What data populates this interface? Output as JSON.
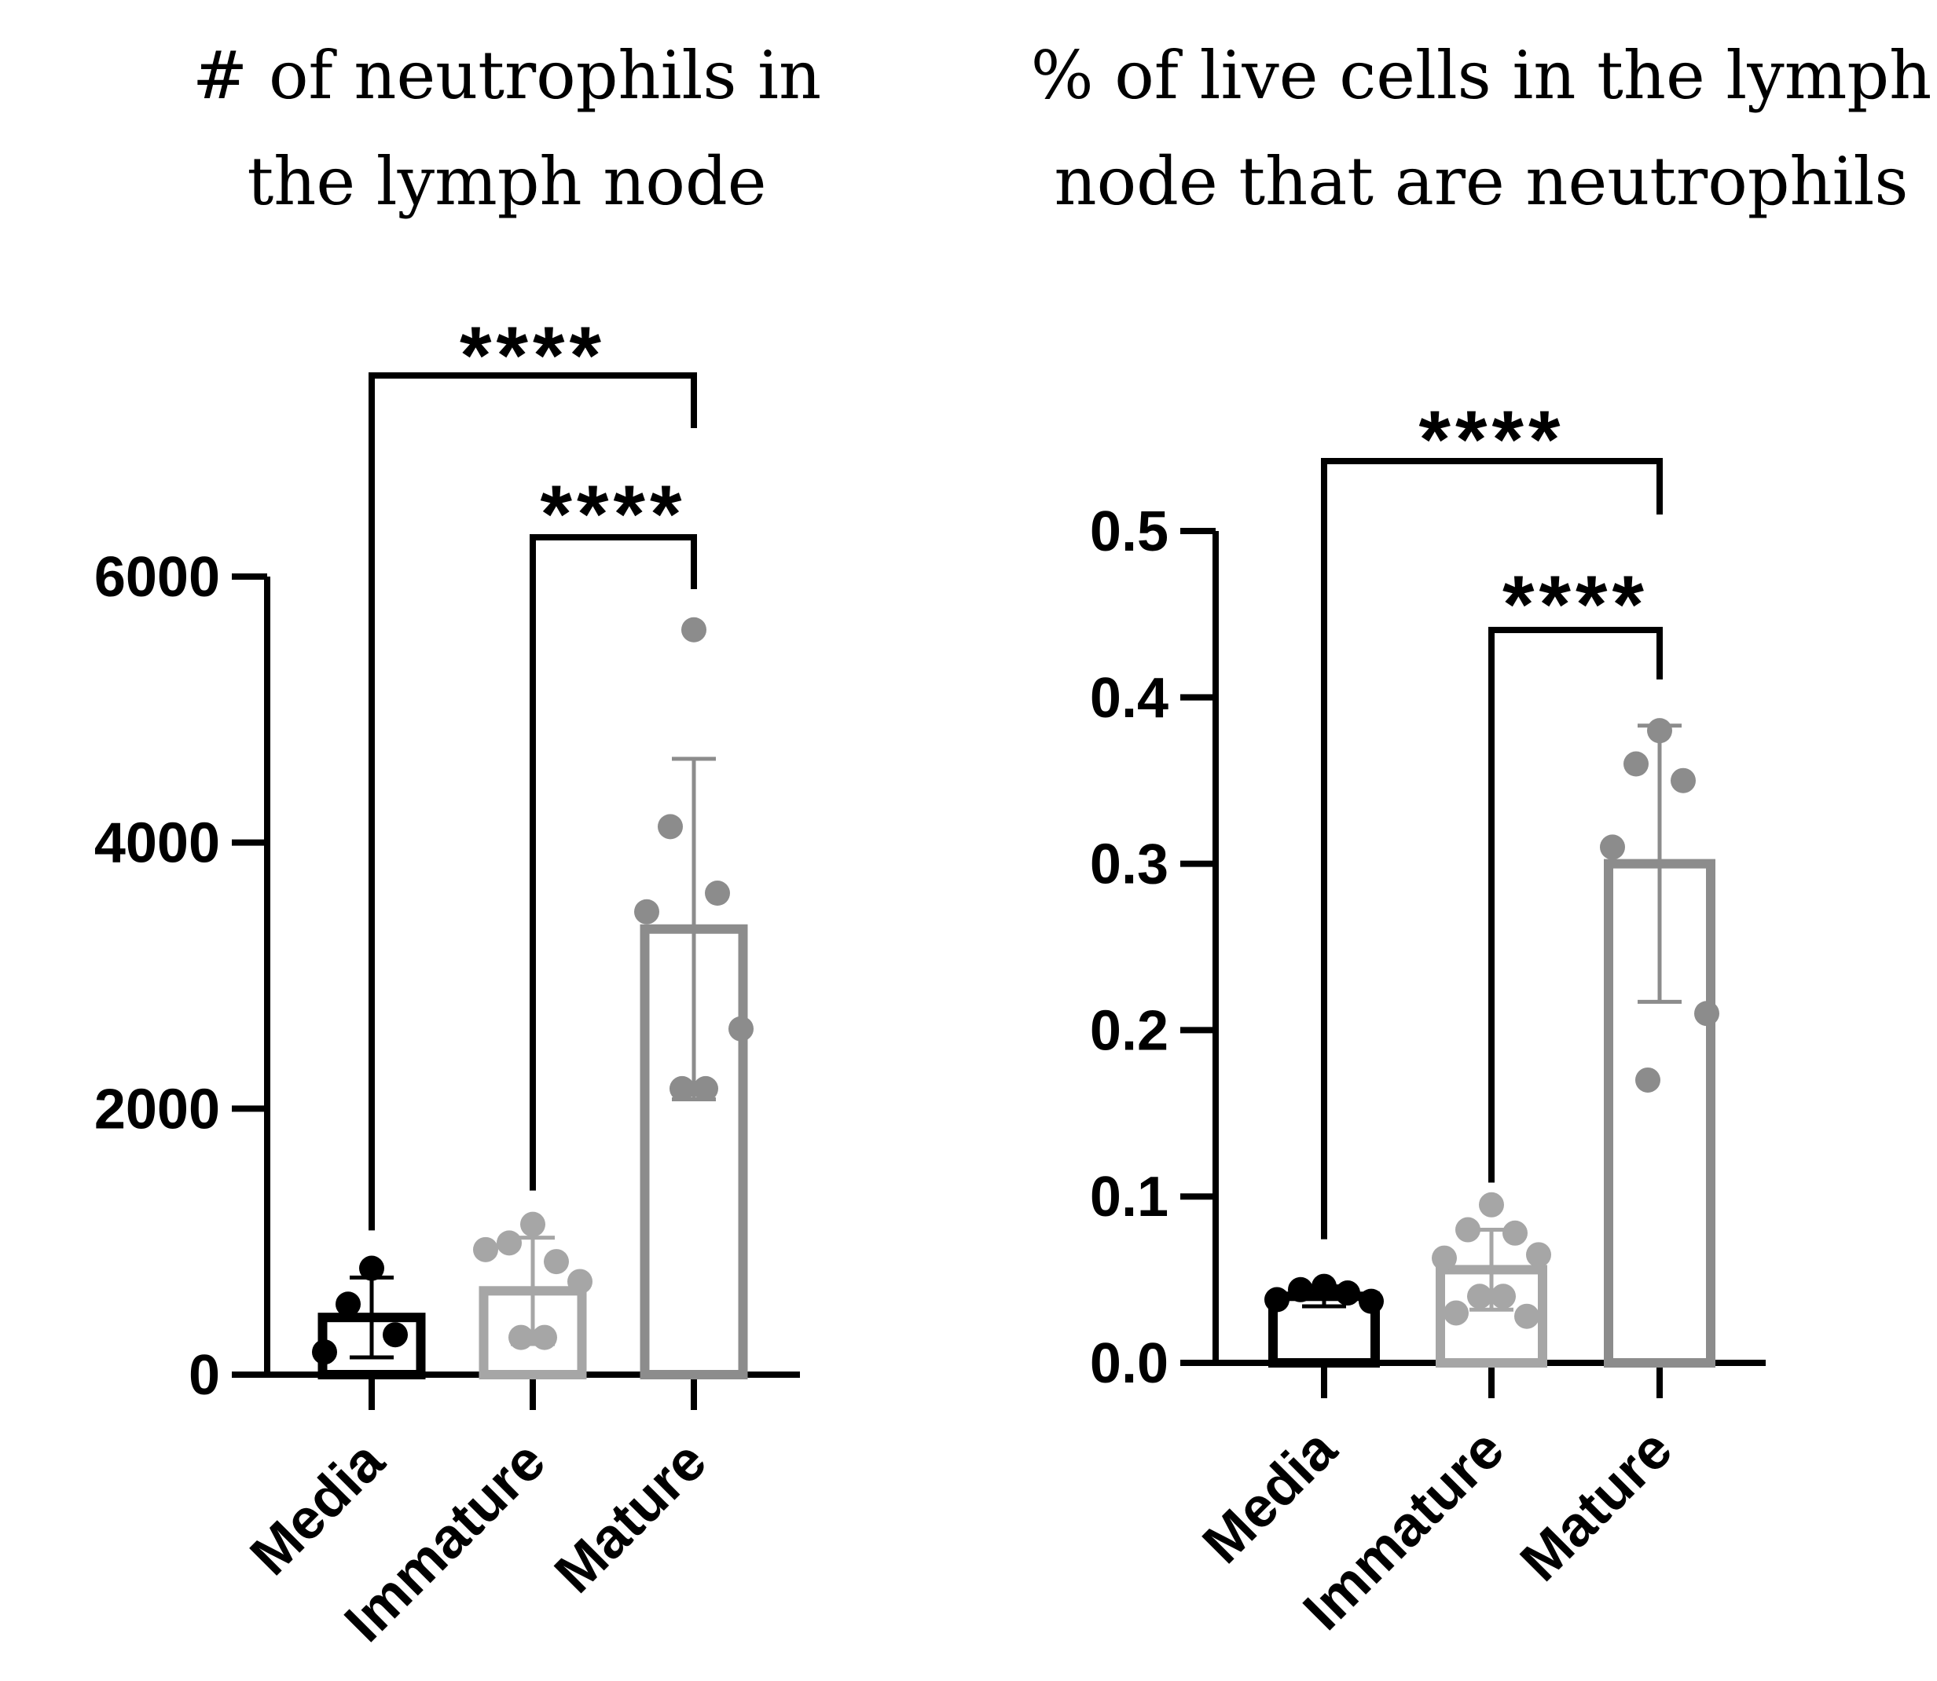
{
  "chart_data": [
    {
      "type": "bar",
      "title_lines": [
        "# of neutrophils in",
        "the lymph node"
      ],
      "xlabel": "",
      "ylabel": "",
      "categories": [
        "Media",
        "Immature",
        "Mature"
      ],
      "colors": [
        "#000000",
        "#a6a6a6",
        "#8c8c8c"
      ],
      "means": [
        430,
        630,
        3350
      ],
      "errors": [
        300,
        400,
        1280
      ],
      "points": [
        [
          800,
          530,
          300,
          170
        ],
        [
          1130,
          990,
          850,
          940,
          700,
          280,
          280
        ],
        [
          5600,
          4120,
          3620,
          3480,
          2600,
          2150,
          2150
        ]
      ],
      "ylim": [
        0,
        6000
      ],
      "yticks": [
        0,
        2000,
        4000,
        6000
      ],
      "ytick_labels": [
        "0",
        "2000",
        "4000",
        "6000"
      ],
      "significance": [
        {
          "from": 0,
          "to": 2,
          "label": "****"
        },
        {
          "from": 1,
          "to": 2,
          "label": "****"
        }
      ]
    },
    {
      "type": "bar",
      "title_lines": [
        "% of live cells in the lymph",
        "node that are neutrophils"
      ],
      "xlabel": "",
      "ylabel": "",
      "categories": [
        "Media",
        "Immature",
        "Mature"
      ],
      "colors": [
        "#000000",
        "#a6a6a6",
        "#8c8c8c"
      ],
      "means": [
        0.04,
        0.056,
        0.3
      ],
      "errors": [
        0.006,
        0.024,
        0.083
      ],
      "points": [
        [
          0.046,
          0.044,
          0.042,
          0.038,
          0.037
        ],
        [
          0.095,
          0.08,
          0.078,
          0.063,
          0.065,
          0.04,
          0.04,
          0.03,
          0.028
        ],
        [
          0.38,
          0.36,
          0.35,
          0.31,
          0.21,
          0.17
        ]
      ],
      "ylim": [
        0,
        0.5
      ],
      "yticks": [
        0,
        0.1,
        0.2,
        0.3,
        0.4,
        0.5
      ],
      "ytick_labels": [
        "0.0",
        "0.1",
        "0.2",
        "0.3",
        "0.4",
        "0.5"
      ],
      "significance": [
        {
          "from": 0,
          "to": 2,
          "label": "****"
        },
        {
          "from": 1,
          "to": 2,
          "label": "****"
        }
      ]
    }
  ]
}
